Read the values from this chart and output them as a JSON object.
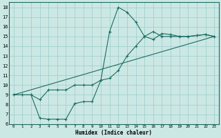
{
  "xlabel": "Humidex (Indice chaleur)",
  "bg_color": "#cce8e4",
  "grid_color": "#99cccc",
  "line_color": "#1a6b60",
  "xlim": [
    -0.5,
    23.5
  ],
  "ylim": [
    6,
    18.5
  ],
  "xticks": [
    0,
    1,
    2,
    3,
    4,
    5,
    6,
    7,
    8,
    9,
    10,
    11,
    12,
    13,
    14,
    15,
    16,
    17,
    18,
    19,
    20,
    21,
    22,
    23
  ],
  "yticks": [
    6,
    7,
    8,
    9,
    10,
    11,
    12,
    13,
    14,
    15,
    16,
    17,
    18
  ],
  "line1_x": [
    0,
    1,
    2,
    3,
    4,
    5,
    6,
    7,
    8,
    9,
    10,
    11,
    12,
    13,
    14,
    15,
    16,
    17,
    18,
    19,
    20,
    21,
    22,
    23
  ],
  "line1_y": [
    9.0,
    9.0,
    9.0,
    8.5,
    9.5,
    9.5,
    9.5,
    10.0,
    10.0,
    10.0,
    10.5,
    15.5,
    18.0,
    17.5,
    16.5,
    15.0,
    14.7,
    15.3,
    15.2,
    15.0,
    15.0,
    15.1,
    15.2,
    15.0
  ],
  "line2_x": [
    0,
    1,
    2,
    3,
    4,
    5,
    6,
    7,
    8,
    9,
    10,
    11,
    12,
    13,
    14,
    15,
    16,
    17,
    18,
    19,
    20,
    21,
    22,
    23
  ],
  "line2_y": [
    9.0,
    9.0,
    9.0,
    6.6,
    6.5,
    6.5,
    6.5,
    8.1,
    8.3,
    8.3,
    10.5,
    10.7,
    11.5,
    13.0,
    14.0,
    15.0,
    15.5,
    15.0,
    15.0,
    15.0,
    15.0,
    15.1,
    15.2,
    15.0
  ],
  "line3_x": [
    0,
    23
  ],
  "line3_y": [
    9.0,
    15.0
  ]
}
